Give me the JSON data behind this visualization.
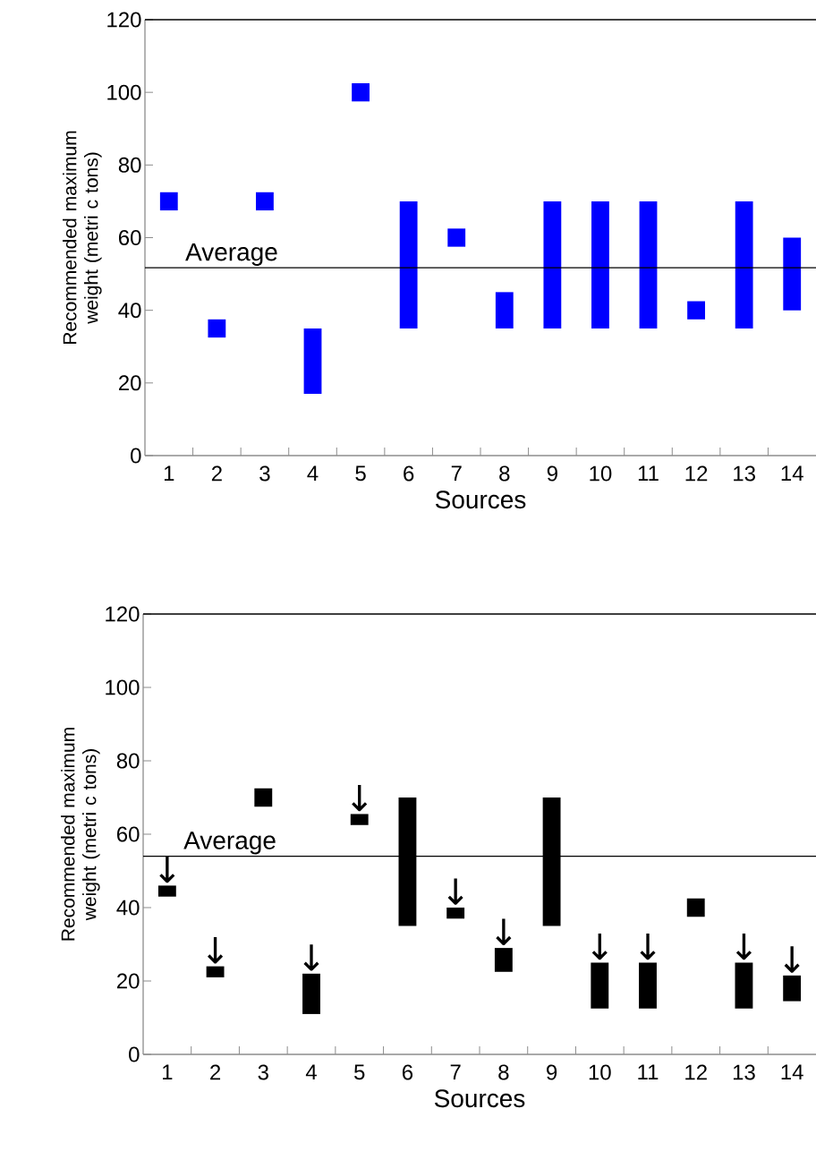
{
  "chart_data": [
    {
      "type": "bar",
      "categories": [
        "1",
        "2",
        "3",
        "4",
        "5",
        "6",
        "7",
        "8",
        "9",
        "10",
        "11",
        "12",
        "13",
        "14"
      ],
      "base": [
        67.5,
        32.5,
        67.5,
        17,
        97.5,
        35,
        57.5,
        35,
        35,
        35,
        35,
        37.5,
        35,
        40
      ],
      "values": [
        5,
        5,
        5,
        18,
        5,
        35,
        5,
        10,
        35,
        35,
        35,
        5,
        35,
        20
      ],
      "color": "#0000ff",
      "xlabel": "Sources",
      "ylabel": "Recommended maximum weight (metri c tons)",
      "ylim": [
        0,
        120
      ],
      "yticks": [
        0,
        20,
        40,
        60,
        80,
        100,
        120
      ],
      "ref_lines": [
        {
          "axis": "y",
          "value": 51.7,
          "label": "Average",
          "color": "#000000"
        }
      ]
    },
    {
      "type": "bar",
      "categories": [
        "1",
        "2",
        "3",
        "4",
        "5",
        "6",
        "7",
        "8",
        "9",
        "10",
        "11",
        "12",
        "13",
        "14"
      ],
      "base": [
        43,
        21,
        67.5,
        11,
        62.5,
        35,
        37,
        22.5,
        35,
        12.5,
        12.5,
        37.5,
        12.5,
        14.5
      ],
      "values": [
        3,
        3,
        5,
        11,
        3,
        35,
        3,
        6.5,
        35,
        12.5,
        12.5,
        5,
        12.5,
        7
      ],
      "color": "#000000",
      "xlabel": "Sources",
      "ylabel": "Recommended maximum weight (metri c tons)",
      "ylim": [
        0,
        120
      ],
      "yticks": [
        0,
        20,
        40,
        60,
        80,
        100,
        120
      ],
      "ref_lines": [
        {
          "axis": "y",
          "value": 54,
          "label": "Average",
          "color": "#000000"
        }
      ],
      "annotations": [
        {
          "text": "↓",
          "x": "1",
          "y": 46
        },
        {
          "text": "↓",
          "x": "2",
          "y": 24
        },
        {
          "text": "↓",
          "x": "4",
          "y": 22
        },
        {
          "text": "↓",
          "x": "5",
          "y": 65.5
        },
        {
          "text": "↓",
          "x": "7",
          "y": 40
        },
        {
          "text": "↓",
          "x": "8",
          "y": 29
        },
        {
          "text": "↓",
          "x": "10",
          "y": 25
        },
        {
          "text": "↓",
          "x": "11",
          "y": 25
        },
        {
          "text": "↓",
          "x": "13",
          "y": 25
        },
        {
          "text": "↓",
          "x": "14",
          "y": 21.5
        }
      ]
    }
  ]
}
